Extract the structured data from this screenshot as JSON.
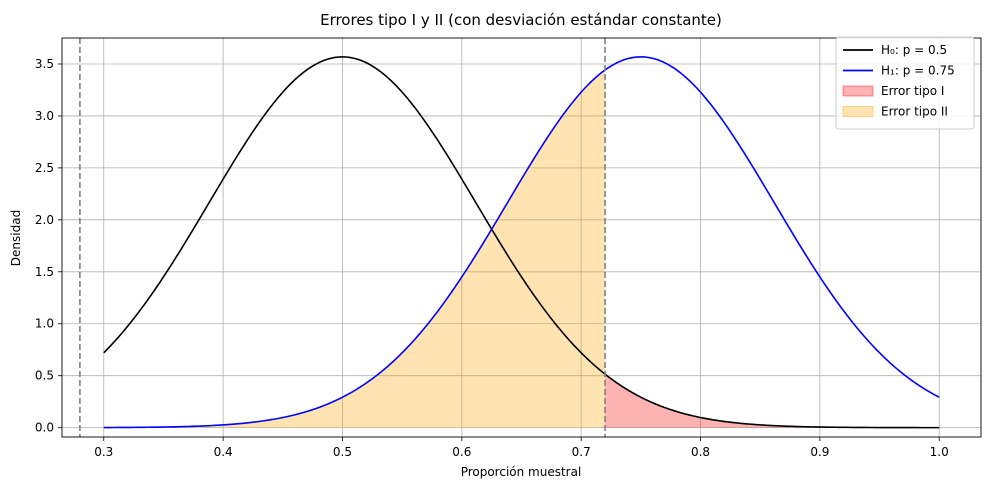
{
  "chart_data": {
    "type": "line",
    "title": "Errores tipo I y II (con desviación estándar constante)",
    "xlabel": "Proporción muestral",
    "ylabel": "Densidad",
    "xlim": [
      0.265,
      1.035
    ],
    "ylim": [
      -0.09,
      3.75
    ],
    "xticks": [
      0.3,
      0.4,
      0.5,
      0.6,
      0.7,
      0.8,
      0.9,
      1.0
    ],
    "xtick_labels": [
      "0.3",
      "0.4",
      "0.5",
      "0.6",
      "0.7",
      "0.8",
      "0.9",
      "1.0"
    ],
    "yticks": [
      0.0,
      0.5,
      1.0,
      1.5,
      2.0,
      2.5,
      3.0,
      3.5
    ],
    "ytick_labels": [
      "0.0",
      "0.5",
      "1.0",
      "1.5",
      "2.0",
      "2.5",
      "3.0",
      "3.5"
    ],
    "grid": true,
    "legend_position": "top-right",
    "sd": 0.1118,
    "x_range": [
      0.3,
      1.0
    ],
    "series": [
      {
        "name": "H₀: p = 0.5",
        "mean": 0.5,
        "color": "#000000",
        "kind": "normal-curve"
      },
      {
        "name": "H₁: p = 0.75",
        "mean": 0.75,
        "color": "#0000ff",
        "kind": "normal-curve"
      }
    ],
    "areas": [
      {
        "name": "Error tipo I",
        "under_series": 0,
        "from": 0.72,
        "to": 1.0,
        "color": "#ff0000",
        "opacity": 0.3
      },
      {
        "name": "Error tipo II",
        "under_series": 1,
        "from": 0.3,
        "to": 0.72,
        "color": "#ffa500",
        "opacity": 0.3
      }
    ],
    "critical_lines": [
      0.28,
      0.72
    ],
    "critical_line_color": "#808080"
  }
}
